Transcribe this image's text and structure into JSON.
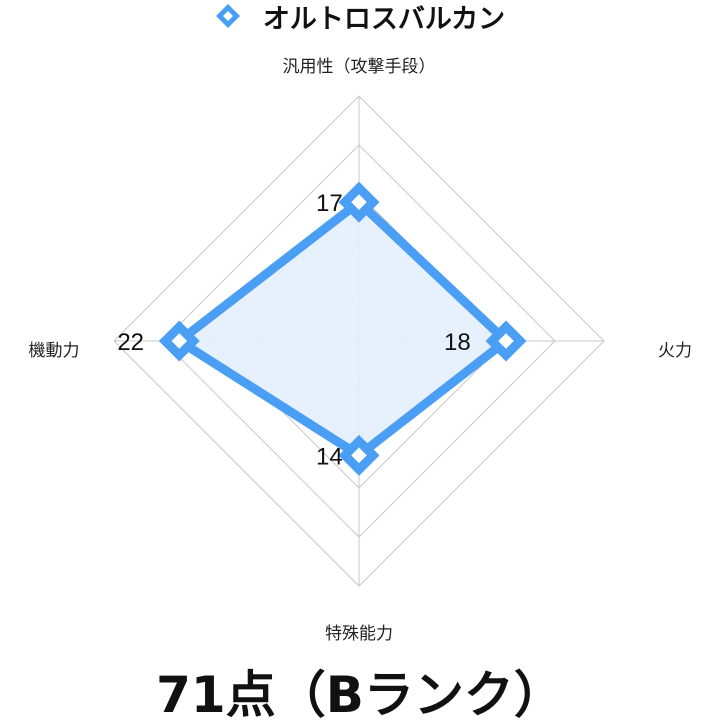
{
  "chart_data": {
    "type": "radar",
    "legend_position": "top",
    "series": [
      {
        "name": "オルトロスバルカン",
        "values": [
          17,
          18,
          14,
          22
        ],
        "color": "#4a9ff5",
        "fill": "#e3f0fd"
      }
    ],
    "axes": [
      "汎用性（攻撃手段）",
      "火力",
      "特殊能力",
      "機動力"
    ],
    "data_labels": [
      "17",
      "18",
      "14",
      "22"
    ],
    "range": [
      0,
      30
    ],
    "ring_step": 6,
    "grid": true,
    "grid_color": "#c8c8c8"
  },
  "score_text": "71点（Bランク）"
}
